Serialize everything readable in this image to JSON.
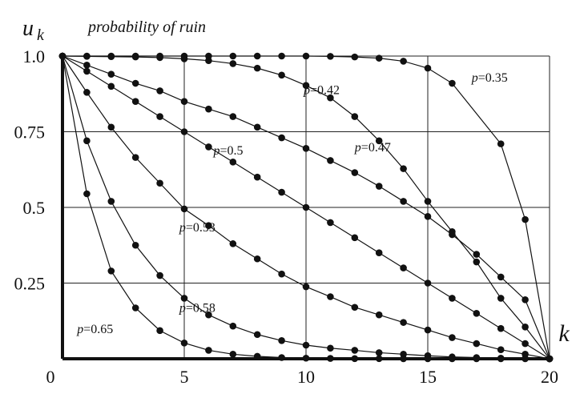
{
  "chart_data": {
    "type": "line",
    "title_symbol": "u",
    "title_subscript": "k",
    "title_text": "probability of ruin",
    "xlabel": "k",
    "ylabel": "",
    "xlim": [
      0,
      20
    ],
    "ylim": [
      0,
      1
    ],
    "grid": true,
    "x_ticks": [
      {
        "value": 0,
        "label": "0"
      },
      {
        "value": 5,
        "label": "5"
      },
      {
        "value": 10,
        "label": "10"
      },
      {
        "value": 15,
        "label": "15"
      },
      {
        "value": 20,
        "label": "20"
      }
    ],
    "y_ticks": [
      {
        "value": 1.0,
        "label": "1.0"
      },
      {
        "value": 0.75,
        "label": "0.75"
      },
      {
        "value": 0.5,
        "label": "0.5"
      },
      {
        "value": 0.25,
        "label": "0.25"
      }
    ],
    "series": [
      {
        "label_var": "p",
        "label_value": "=0.35",
        "label_anchor_x": 16.8,
        "label_anchor_y": 0.915,
        "x": [
          0,
          1,
          2,
          3,
          4,
          5,
          6,
          7,
          8,
          9,
          10,
          11,
          12,
          13,
          14,
          15,
          16,
          18,
          19,
          20
        ],
        "y": [
          1,
          1,
          1,
          1,
          1,
          1,
          1,
          1,
          1,
          1,
          1,
          0.999,
          0.997,
          0.993,
          0.983,
          0.96,
          0.91,
          0.71,
          0.46,
          0
        ]
      },
      {
        "label_var": "p",
        "label_value": "=0.42",
        "label_anchor_x": 9.9,
        "label_anchor_y": 0.875,
        "x": [
          0,
          1,
          2,
          3,
          4,
          5,
          6,
          7,
          8,
          9,
          10,
          11,
          12,
          13,
          14,
          15,
          16,
          17,
          18,
          19,
          20
        ],
        "y": [
          1,
          0.999,
          0.998,
          0.997,
          0.995,
          0.991,
          0.985,
          0.975,
          0.96,
          0.937,
          0.903,
          0.862,
          0.8,
          0.72,
          0.628,
          0.52,
          0.42,
          0.32,
          0.2,
          0.105,
          0
        ]
      },
      {
        "label_var": "p",
        "label_value": "=0.47",
        "label_anchor_x": 12.0,
        "label_anchor_y": 0.685,
        "x": [
          0,
          1,
          2,
          3,
          4,
          5,
          6,
          7,
          8,
          9,
          10,
          11,
          12,
          13,
          14,
          15,
          16,
          17,
          18,
          19,
          20
        ],
        "y": [
          1,
          0.97,
          0.94,
          0.91,
          0.885,
          0.85,
          0.825,
          0.8,
          0.765,
          0.73,
          0.695,
          0.655,
          0.615,
          0.57,
          0.52,
          0.47,
          0.41,
          0.345,
          0.27,
          0.195,
          0
        ]
      },
      {
        "label_var": "p",
        "label_value": "=0.5",
        "label_anchor_x": 6.2,
        "label_anchor_y": 0.675,
        "x": [
          0,
          1,
          2,
          3,
          4,
          5,
          6,
          7,
          8,
          9,
          10,
          11,
          12,
          13,
          14,
          15,
          16,
          17,
          18,
          19,
          20
        ],
        "y": [
          1,
          0.95,
          0.9,
          0.85,
          0.8,
          0.75,
          0.7,
          0.65,
          0.6,
          0.55,
          0.5,
          0.45,
          0.4,
          0.35,
          0.3,
          0.25,
          0.2,
          0.15,
          0.1,
          0.05,
          0
        ]
      },
      {
        "label_var": "p",
        "label_value": "=0.53",
        "label_anchor_x": 4.8,
        "label_anchor_y": 0.42,
        "x": [
          0,
          1,
          2,
          3,
          4,
          5,
          6,
          7,
          8,
          9,
          10,
          11,
          12,
          13,
          14,
          15,
          16,
          17,
          18,
          19,
          20
        ],
        "y": [
          1,
          0.88,
          0.765,
          0.665,
          0.58,
          0.495,
          0.44,
          0.38,
          0.33,
          0.28,
          0.238,
          0.205,
          0.17,
          0.145,
          0.12,
          0.095,
          0.07,
          0.05,
          0.03,
          0.015,
          0
        ]
      },
      {
        "label_var": "p",
        "label_value": "=0.58",
        "label_anchor_x": 4.8,
        "label_anchor_y": 0.155,
        "x": [
          0,
          1,
          2,
          3,
          4,
          5,
          6,
          7,
          8,
          9,
          10,
          11,
          12,
          13,
          14,
          15,
          16,
          17,
          18,
          19,
          20
        ],
        "y": [
          1,
          0.72,
          0.52,
          0.375,
          0.275,
          0.2,
          0.145,
          0.108,
          0.08,
          0.06,
          0.045,
          0.035,
          0.028,
          0.02,
          0.015,
          0.01,
          0.006,
          0.004,
          0.002,
          0.001,
          0
        ]
      },
      {
        "label_var": "p",
        "label_value": "=0.65",
        "label_anchor_x": 0.6,
        "label_anchor_y": 0.085,
        "x": [
          0,
          1,
          2,
          3,
          4,
          5,
          6,
          7,
          8,
          9,
          10,
          11,
          12,
          13,
          14,
          15,
          16,
          17,
          18,
          19,
          20
        ],
        "y": [
          1,
          0.545,
          0.29,
          0.168,
          0.093,
          0.052,
          0.028,
          0.015,
          0.008,
          0.004,
          0.002,
          0.0012,
          0.0006,
          0.0003,
          0.00015,
          8e-05,
          4e-05,
          2e-05,
          1e-05,
          5e-06,
          0
        ]
      }
    ]
  }
}
